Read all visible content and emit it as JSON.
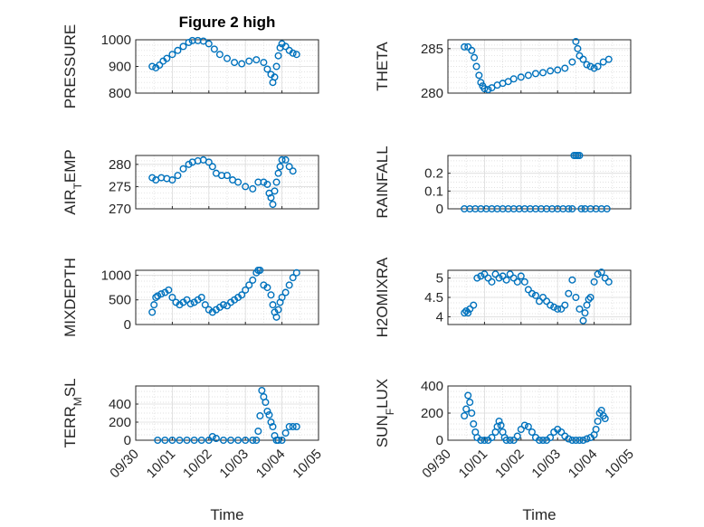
{
  "chart_data": [
    {
      "type": "scatter",
      "title": "Figure 2 high",
      "ylabel": "PRESSURE",
      "xlabel": "",
      "ylim": [
        800,
        1000
      ],
      "yticks": [
        "800",
        "900",
        "1000"
      ],
      "xlim": [
        0,
        5
      ],
      "xticks": [
        "09/30",
        "10/01",
        "10/02",
        "10/03",
        "10/04",
        "10/05"
      ],
      "show_xticks": false,
      "grid": "on",
      "series": [
        {
          "x": [
            0.45,
            0.55,
            0.65,
            0.75,
            0.85,
            1.0,
            1.15,
            1.3,
            1.45,
            1.55,
            1.7,
            1.85,
            2.0,
            2.15,
            2.3,
            2.5,
            2.7,
            2.9,
            3.1,
            3.3,
            3.5,
            3.6,
            3.7,
            3.75,
            3.8,
            3.85,
            3.9,
            3.95,
            4.0,
            4.1,
            4.2,
            4.3,
            4.4
          ],
          "y": [
            900,
            895,
            905,
            920,
            930,
            945,
            960,
            975,
            990,
            997,
            997,
            995,
            985,
            965,
            945,
            930,
            915,
            910,
            920,
            925,
            915,
            890,
            870,
            840,
            860,
            900,
            940,
            970,
            985,
            975,
            960,
            950,
            945
          ]
        }
      ]
    },
    {
      "type": "scatter",
      "title": "",
      "ylabel": "THETA",
      "xlabel": "",
      "ylim": [
        280,
        286
      ],
      "yticks": [
        "280",
        "285"
      ],
      "xlim": [
        0,
        5
      ],
      "xticks": [
        "09/30",
        "10/01",
        "10/02",
        "10/03",
        "10/04",
        "10/05"
      ],
      "show_xticks": false,
      "grid": "on",
      "series": [
        {
          "x": [
            0.45,
            0.55,
            0.65,
            0.72,
            0.78,
            0.85,
            0.9,
            0.95,
            1.0,
            1.1,
            1.2,
            1.35,
            1.5,
            1.65,
            1.8,
            2.0,
            2.2,
            2.4,
            2.6,
            2.8,
            3.0,
            3.2,
            3.4,
            3.5,
            3.55,
            3.6,
            3.7,
            3.8,
            3.9,
            4.0,
            4.1,
            4.25,
            4.4
          ],
          "y": [
            285.2,
            285.2,
            284.8,
            284.0,
            283.0,
            282.0,
            281.2,
            280.8,
            280.5,
            280.4,
            280.6,
            280.9,
            281.1,
            281.3,
            281.6,
            281.8,
            282.0,
            282.2,
            282.3,
            282.5,
            282.6,
            282.8,
            283.5,
            285.8,
            285.0,
            284.2,
            283.8,
            283.2,
            283.0,
            282.8,
            283.0,
            283.5,
            283.8
          ]
        }
      ]
    },
    {
      "type": "scatter",
      "title": "",
      "ylabel": "AIR_TEMP",
      "xlabel": "",
      "ylim": [
        270,
        282
      ],
      "yticks": [
        "270",
        "275",
        "280"
      ],
      "xlim": [
        0,
        5
      ],
      "xticks": [
        "09/30",
        "10/01",
        "10/02",
        "10/03",
        "10/04",
        "10/05"
      ],
      "show_xticks": false,
      "grid": "on",
      "series": [
        {
          "x": [
            0.45,
            0.55,
            0.7,
            0.85,
            1.0,
            1.15,
            1.3,
            1.45,
            1.55,
            1.7,
            1.85,
            2.0,
            2.1,
            2.2,
            2.35,
            2.5,
            2.65,
            2.8,
            3.0,
            3.2,
            3.35,
            3.5,
            3.6,
            3.65,
            3.7,
            3.75,
            3.8,
            3.85,
            3.9,
            3.95,
            4.0,
            4.1,
            4.2,
            4.3
          ],
          "y": [
            277,
            276.5,
            277,
            276.8,
            276.5,
            277.5,
            279,
            280,
            280.5,
            280.8,
            281,
            280.5,
            279.5,
            278,
            277.5,
            277.5,
            276.5,
            276,
            275,
            274.5,
            276,
            276,
            275.5,
            273.5,
            272.5,
            271,
            274,
            276,
            278,
            279.5,
            281,
            281,
            279.5,
            278.5
          ]
        }
      ]
    },
    {
      "type": "scatter",
      "title": "",
      "ylabel": "RAINFALL",
      "xlabel": "",
      "ylim": [
        0,
        0.3
      ],
      "yticks": [
        "0",
        "0.1",
        "0.2"
      ],
      "xlim": [
        0,
        5
      ],
      "xticks": [
        "09/30",
        "10/01",
        "10/02",
        "10/03",
        "10/04",
        "10/05"
      ],
      "show_xticks": false,
      "grid": "on",
      "series": [
        {
          "x": [
            0.45,
            0.6,
            0.75,
            0.9,
            1.05,
            1.2,
            1.35,
            1.5,
            1.65,
            1.8,
            1.95,
            2.1,
            2.25,
            2.4,
            2.55,
            2.7,
            2.85,
            3.0,
            3.15,
            3.3,
            3.4,
            3.45,
            3.5,
            3.55,
            3.6,
            3.65,
            3.75,
            3.9,
            4.05,
            4.2,
            4.35
          ],
          "y": [
            0,
            0,
            0,
            0,
            0,
            0,
            0,
            0,
            0,
            0,
            0,
            0,
            0,
            0,
            0,
            0,
            0,
            0,
            0,
            0,
            0,
            0.3,
            0.3,
            0.3,
            0.3,
            0,
            0,
            0,
            0,
            0,
            0
          ]
        }
      ]
    },
    {
      "type": "scatter",
      "title": "",
      "ylabel": "MIXDEPTH",
      "xlabel": "",
      "ylim": [
        0,
        1100
      ],
      "yticks": [
        "0",
        "500",
        "1000"
      ],
      "xlim": [
        0,
        5
      ],
      "xticks": [
        "09/30",
        "10/01",
        "10/02",
        "10/03",
        "10/04",
        "10/05"
      ],
      "show_xticks": false,
      "grid": "on",
      "series": [
        {
          "x": [
            0.45,
            0.5,
            0.55,
            0.6,
            0.7,
            0.8,
            0.9,
            1.0,
            1.1,
            1.2,
            1.3,
            1.4,
            1.5,
            1.6,
            1.7,
            1.8,
            1.9,
            2.0,
            2.1,
            2.2,
            2.3,
            2.4,
            2.5,
            2.6,
            2.7,
            2.8,
            2.9,
            3.0,
            3.1,
            3.2,
            3.3,
            3.35,
            3.4,
            3.5,
            3.6,
            3.7,
            3.75,
            3.8,
            3.85,
            3.9,
            3.95,
            4.0,
            4.1,
            4.2,
            4.3,
            4.4
          ],
          "y": [
            250,
            400,
            550,
            580,
            620,
            650,
            700,
            550,
            450,
            400,
            450,
            500,
            420,
            450,
            500,
            550,
            400,
            300,
            250,
            300,
            350,
            400,
            380,
            450,
            500,
            550,
            600,
            700,
            800,
            900,
            1050,
            1100,
            1100,
            800,
            750,
            600,
            400,
            250,
            150,
            300,
            450,
            550,
            650,
            800,
            950,
            1050
          ]
        }
      ]
    },
    {
      "type": "scatter",
      "title": "",
      "ylabel": "H2OMIXRA",
      "xlabel": "",
      "ylim": [
        3.8,
        5.2
      ],
      "yticks": [
        "4",
        "4.5",
        "5"
      ],
      "xlim": [
        0,
        5
      ],
      "xticks": [
        "09/30",
        "10/01",
        "10/02",
        "10/03",
        "10/04",
        "10/05"
      ],
      "show_xticks": false,
      "grid": "on",
      "series": [
        {
          "x": [
            0.45,
            0.5,
            0.55,
            0.6,
            0.7,
            0.8,
            0.9,
            1.0,
            1.1,
            1.2,
            1.3,
            1.4,
            1.5,
            1.6,
            1.7,
            1.8,
            1.9,
            2.0,
            2.1,
            2.2,
            2.3,
            2.4,
            2.5,
            2.6,
            2.7,
            2.8,
            2.9,
            3.0,
            3.1,
            3.2,
            3.3,
            3.4,
            3.5,
            3.6,
            3.7,
            3.75,
            3.8,
            3.85,
            3.9,
            4.0,
            4.1,
            4.2,
            4.3,
            4.4
          ],
          "y": [
            4.1,
            4.15,
            4.1,
            4.2,
            4.3,
            5.0,
            5.05,
            5.1,
            5.0,
            4.9,
            5.1,
            5.0,
            5.05,
            4.95,
            5.1,
            5.0,
            4.9,
            5.05,
            4.9,
            4.7,
            4.6,
            4.55,
            4.4,
            4.5,
            4.4,
            4.3,
            4.25,
            4.2,
            4.2,
            4.3,
            4.6,
            4.95,
            4.5,
            4.2,
            3.9,
            4.1,
            4.3,
            4.45,
            4.5,
            4.9,
            5.1,
            5.15,
            5.0,
            4.9
          ]
        }
      ]
    },
    {
      "type": "scatter",
      "title": "",
      "ylabel": "TERR_MSL",
      "xlabel": "Time",
      "ylim": [
        0,
        600
      ],
      "yticks": [
        "0",
        "200",
        "400"
      ],
      "xlim": [
        0,
        5
      ],
      "xticks": [
        "09/30",
        "10/01",
        "10/02",
        "10/03",
        "10/04",
        "10/05"
      ],
      "show_xticks": true,
      "grid": "on",
      "series": [
        {
          "x": [
            0.6,
            0.8,
            1.0,
            1.2,
            1.4,
            1.6,
            1.8,
            2.0,
            2.1,
            2.2,
            2.4,
            2.6,
            2.8,
            3.0,
            3.2,
            3.3,
            3.35,
            3.4,
            3.45,
            3.5,
            3.55,
            3.6,
            3.65,
            3.7,
            3.75,
            3.8,
            3.85,
            3.9,
            4.0,
            4.1,
            4.2,
            4.3,
            4.4
          ],
          "y": [
            0,
            0,
            0,
            0,
            0,
            0,
            0,
            0,
            40,
            20,
            0,
            0,
            0,
            0,
            0,
            0,
            100,
            270,
            550,
            480,
            420,
            320,
            280,
            200,
            150,
            50,
            0,
            0,
            0,
            80,
            150,
            150,
            150
          ]
        }
      ]
    },
    {
      "type": "scatter",
      "title": "",
      "ylabel": "SUN_FLUX",
      "xlabel": "Time",
      "ylim": [
        0,
        400
      ],
      "yticks": [
        "0",
        "200",
        "400"
      ],
      "xlim": [
        0,
        5
      ],
      "xticks": [
        "09/30",
        "10/01",
        "10/02",
        "10/03",
        "10/04",
        "10/05"
      ],
      "show_xticks": true,
      "grid": "on",
      "series": [
        {
          "x": [
            0.45,
            0.5,
            0.55,
            0.6,
            0.65,
            0.7,
            0.75,
            0.8,
            0.9,
            1.0,
            1.1,
            1.2,
            1.3,
            1.35,
            1.4,
            1.45,
            1.5,
            1.55,
            1.6,
            1.7,
            1.8,
            1.9,
            2.0,
            2.1,
            2.2,
            2.3,
            2.4,
            2.5,
            2.6,
            2.7,
            2.8,
            2.9,
            3.0,
            3.1,
            3.2,
            3.3,
            3.4,
            3.5,
            3.6,
            3.7,
            3.8,
            3.9,
            4.0,
            4.05,
            4.1,
            4.15,
            4.2,
            4.25,
            4.3
          ],
          "y": [
            180,
            230,
            330,
            280,
            200,
            120,
            60,
            20,
            0,
            0,
            0,
            20,
            60,
            100,
            140,
            110,
            60,
            20,
            0,
            0,
            0,
            30,
            80,
            110,
            100,
            60,
            20,
            0,
            0,
            0,
            20,
            60,
            80,
            60,
            30,
            10,
            0,
            0,
            0,
            0,
            10,
            20,
            40,
            80,
            140,
            200,
            220,
            180,
            160
          ]
        }
      ]
    }
  ]
}
